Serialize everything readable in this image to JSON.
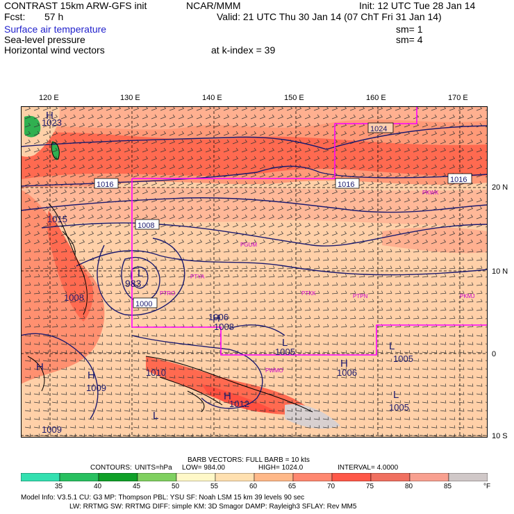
{
  "header": {
    "model": "CONTRAST 15km ARW-GFS init",
    "org": "NCAR/MMM",
    "init": "Init: 12 UTC Tue 28 Jan 14",
    "fcst_label": "Fcst:",
    "fcst_value": "57 h",
    "valid": "Valid: 21 UTC Thu 30 Jan 14 (07 ChT Fri 31 Jan 14)",
    "field1": "Surface air temperature",
    "field1_sm": "sm= 1",
    "field2": "Sea-level pressure",
    "field2_sm": "sm= 4",
    "field3": "Horizontal wind vectors",
    "kindex": "at k-index = 39"
  },
  "axes": {
    "lon_labels": [
      "120 E",
      "130 E",
      "140 E",
      "150 E",
      "160 E",
      "170 E"
    ],
    "lat_labels": [
      "20 N",
      "10 N",
      "0",
      "10 S"
    ]
  },
  "map": {
    "pressure_labels": [
      "1023",
      "1024",
      "1016",
      "1016",
      "1016",
      "1015",
      "1008",
      "983",
      "1008",
      "1006",
      "1008",
      "1005",
      "1006",
      "1005",
      "1010",
      "1009",
      "1012",
      "1005",
      "1009",
      "1000"
    ],
    "pressure_centers": [
      "H",
      "H",
      "H",
      "H",
      "H",
      "H",
      "L",
      "L",
      "L",
      "L",
      "L"
    ],
    "stations": [
      "PKWK",
      "PGUM",
      "PTYA",
      "PTRO",
      "PTKK",
      "PTPN",
      "PKMJ",
      "PWMO"
    ],
    "colors": {
      "contour": "#1a1a6e",
      "box": "#ff00ff",
      "station": "#cc00cc"
    }
  },
  "footer": {
    "barb_line": "BARB VECTORS:  FULL BARB = 10 kts",
    "contours_label": "CONTOURS:",
    "units": "UNITS=hPa",
    "low": "LOW= 984.00",
    "high": "HIGH= 1024.0",
    "interval": "INTERVAL= 4.0000",
    "colorbar_ticks": [
      "35",
      "40",
      "45",
      "50",
      "55",
      "60",
      "65",
      "70",
      "75",
      "80",
      "85"
    ],
    "colorbar_unit": "°F",
    "colorbar_colors": [
      "#33e0b0",
      "#28c060",
      "#10a028",
      "#80d060",
      "#fff8c8",
      "#ffe0b0",
      "#ffb888",
      "#ff8870",
      "#ff5848",
      "#f07060",
      "#f8a090",
      "#d0c8c8"
    ],
    "model_info_1": "Model Info: V3.5.1   CU: G3     MP: Thompson    PBL: YSU      SF: Noah LSM     15 km    39 levels    90 sec",
    "model_info_2": "LW: RRTMG    SW: RRTMG   DIFF: simple KM: 3D Smagor DAMP: Rayleigh3  SFLAY: Rev MM5"
  }
}
